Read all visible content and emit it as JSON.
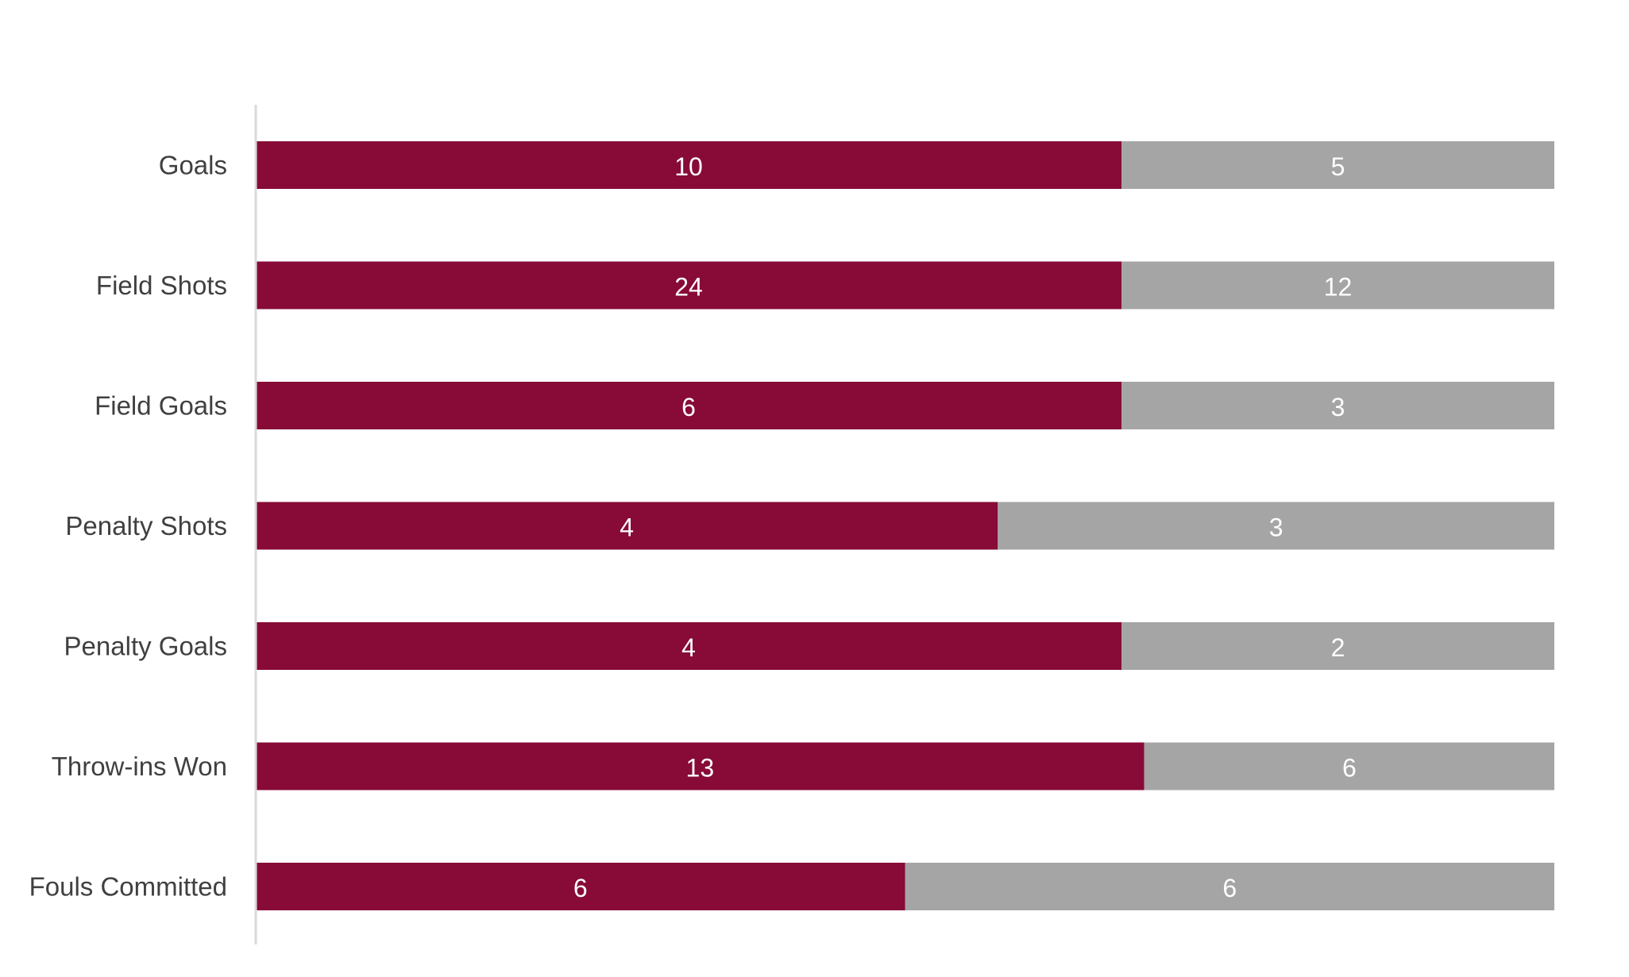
{
  "chart_data": {
    "type": "bar",
    "orientation": "horizontal",
    "stacked": "percent",
    "title": "",
    "xlabel": "",
    "ylabel": "",
    "categories": [
      "Goals",
      "Field Shots",
      "Field Goals",
      "Penalty Shots",
      "Penalty Goals",
      "Throw-ins Won",
      "Fouls Committed"
    ],
    "series": [
      {
        "values": [
          10,
          24,
          6,
          4,
          4,
          13,
          6
        ],
        "color": "#870A37"
      },
      {
        "values": [
          5,
          12,
          3,
          3,
          2,
          6,
          6
        ],
        "color": "#A5A5A5"
      }
    ],
    "data_labels": true,
    "grid": false,
    "legend": "none",
    "axis_color": "#D9D9D9",
    "label_color": "#404040"
  }
}
